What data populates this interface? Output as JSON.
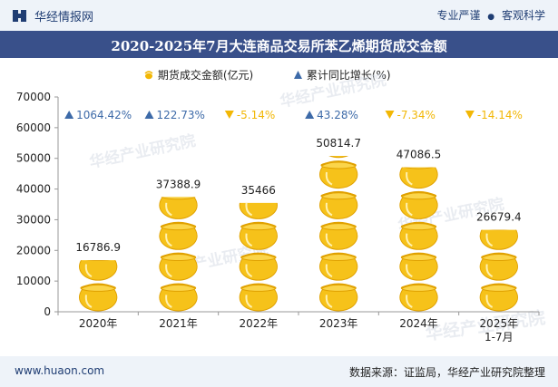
{
  "header": {
    "brand": "华经情报网",
    "slogan_left": "专业严谨",
    "slogan_sep": "●",
    "slogan_right": "客观科学",
    "title": "2020-2025年7月大连商品交易所苯乙烯期货成交金额"
  },
  "legend": {
    "items": [
      {
        "label": "期货成交金额(亿元)",
        "marker": "pot-icon",
        "color": "#f2b705"
      },
      {
        "label": "累计同比增长(%)",
        "marker": "triangle-icon",
        "color": "#3d6aa8"
      }
    ]
  },
  "footer": {
    "site": "www.huaon.com",
    "source": "数据来源：证监局，华经产业研究院整理"
  },
  "watermark": "华经产业研究院",
  "chart_data": {
    "type": "bar",
    "categories": [
      "2020年",
      "2021年",
      "2022年",
      "2023年",
      "2024年",
      "2025年\n1-7月"
    ],
    "ylim": [
      0,
      70000
    ],
    "yticks": [
      0,
      10000,
      20000,
      30000,
      40000,
      50000,
      60000,
      70000
    ],
    "series": [
      {
        "name": "期货成交金额(亿元)",
        "values": [
          16786.9,
          37388.9,
          35466,
          50814.7,
          47086.5,
          26679.4
        ],
        "labels": [
          "16786.9",
          "37388.9",
          "35466",
          "50814.7",
          "47086.5",
          "26679.4"
        ]
      },
      {
        "name": "累计同比增长(%)",
        "values": [
          1064.42,
          122.73,
          -5.14,
          43.28,
          -7.34,
          -14.14
        ],
        "labels": [
          "1064.42%",
          "122.73%",
          "-5.14%",
          "43.28%",
          "-7.34%",
          "-14.14%"
        ]
      }
    ],
    "colors": {
      "bar": "#f2b705",
      "up": "#3d6aa8",
      "down": "#f2b705"
    }
  }
}
